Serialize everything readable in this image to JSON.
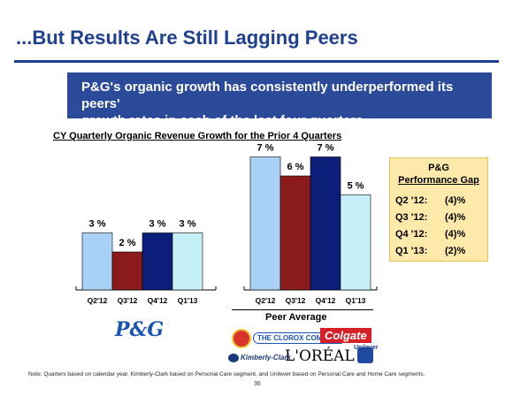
{
  "title": "...But Results Are Still Lagging Peers",
  "banner": {
    "line1": "P&G's organic growth has consistently underperformed its peers'",
    "line2": "growth rates in each of the last four quarters"
  },
  "chart_data": {
    "type": "bar",
    "title": "CY Quarterly Organic Revenue Growth for the Prior 4 Quarters",
    "groups": [
      {
        "name": "P&G",
        "categories": [
          "Q2'12",
          "Q3'12",
          "Q4'12",
          "Q1'13"
        ],
        "values": [
          3,
          2,
          3,
          3
        ],
        "labels": [
          "3 %",
          "2 %",
          "3 %",
          "3 %"
        ],
        "colors": [
          "#a9d0f5",
          "#8b1a1a",
          "#0b1f7a",
          "#c6f0f8"
        ]
      },
      {
        "name": "Peer Average",
        "categories": [
          "Q2'12",
          "Q3'12",
          "Q4'12",
          "Q1'13"
        ],
        "values": [
          7,
          6,
          7,
          5
        ],
        "labels": [
          "7 %",
          "6 %",
          "7 %",
          "5 %"
        ],
        "colors": [
          "#a9d0f5",
          "#8b1a1a",
          "#0b1f7a",
          "#c6f0f8"
        ]
      }
    ],
    "ylim": [
      0,
      8
    ],
    "grid": false,
    "legend": "none"
  },
  "gap": {
    "title1": "P&G",
    "title2": "Performance Gap",
    "rows": [
      {
        "q": "Q2 '12:",
        "v": "(4)%"
      },
      {
        "q": "Q3 '12:",
        "v": "(4)%"
      },
      {
        "q": "Q4 '12:",
        "v": "(4)%"
      },
      {
        "q": "Q1 '13:",
        "v": "(2)%"
      }
    ]
  },
  "logos": {
    "pg": "P&G",
    "clorox": "THE CLOROX COMPANY",
    "colgate": "Colgate",
    "kimberly": "Kimberly-Clark",
    "loreal": "L'ORÉAL",
    "unilever": "Unilever"
  },
  "footnote": "Note: Quarters based on calendar year. Kimberly-Clark based on Personal Care segment, and Unilever based on Personal Care and Home Care segments.",
  "page_number": "36"
}
